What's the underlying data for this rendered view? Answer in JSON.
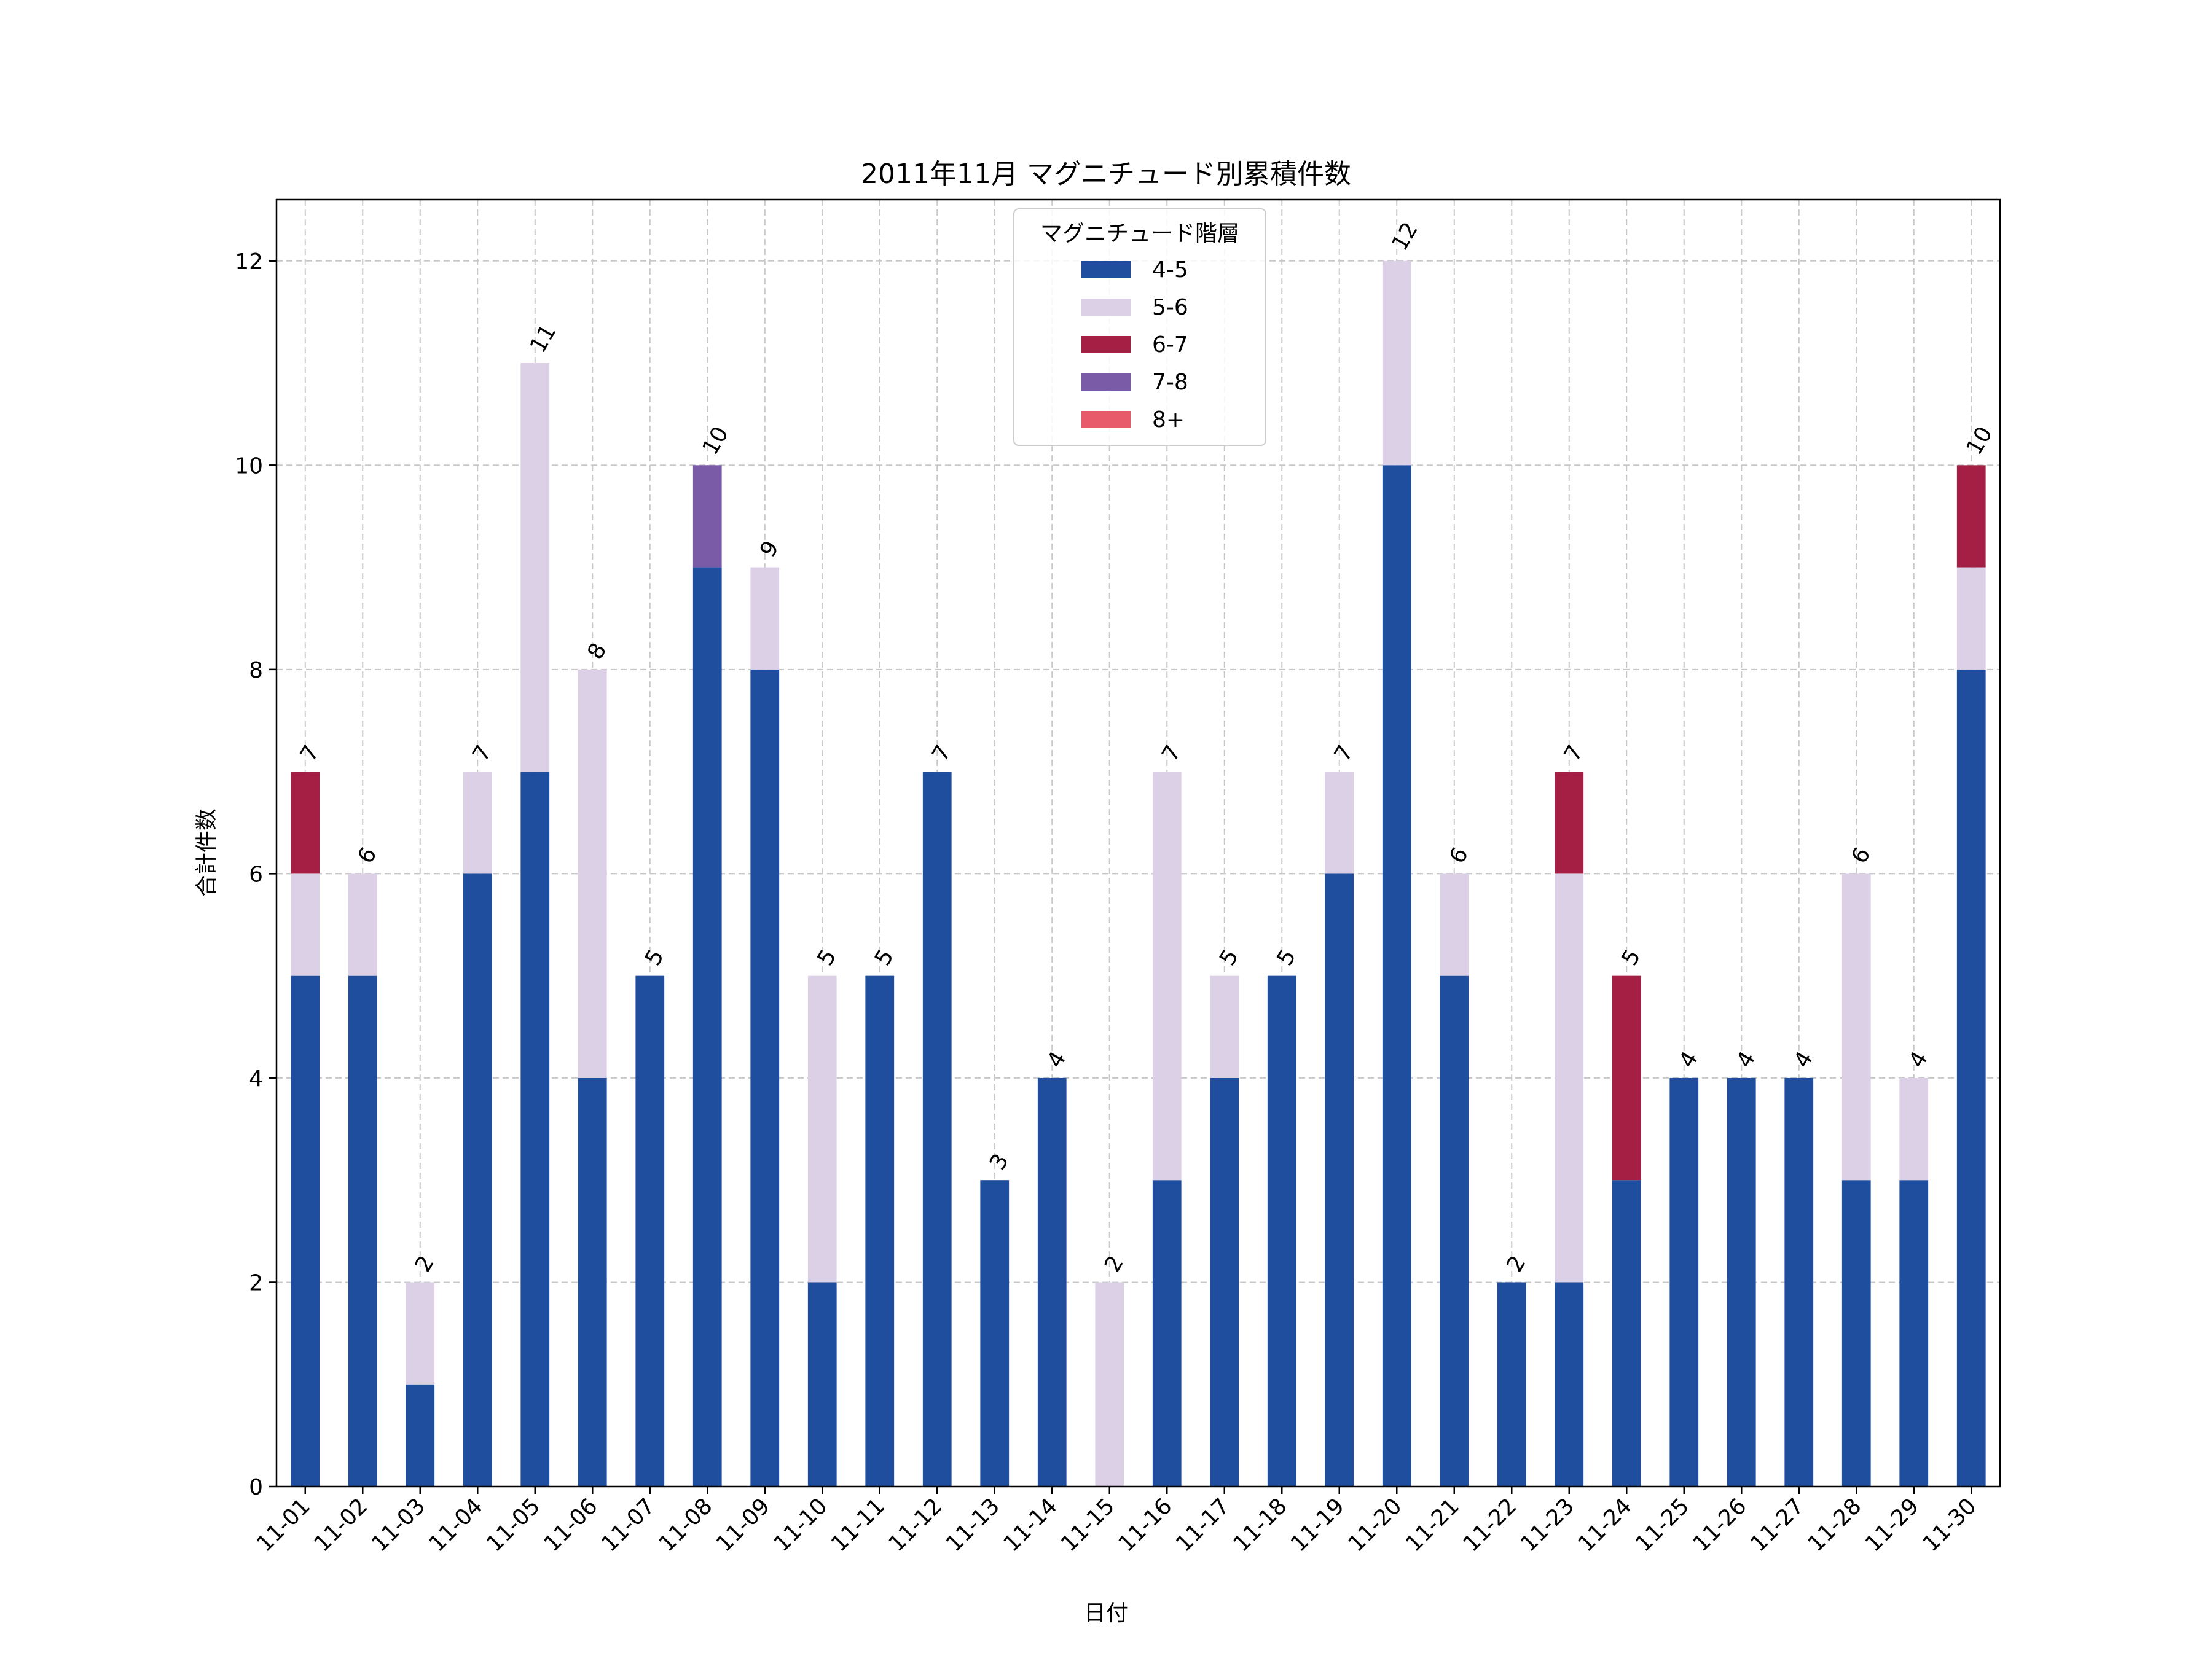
{
  "chart_data": {
    "type": "bar",
    "stacked": true,
    "title": "2011年11月 マグニチュード別累積件数",
    "xlabel": "日付",
    "ylabel": "合計件数",
    "ylim": [
      0,
      12.6
    ],
    "yticks": [
      0,
      2,
      4,
      6,
      8,
      10,
      12
    ],
    "grid": true,
    "legend": {
      "title": "マグニチュード階層",
      "placement": "top-center"
    },
    "categories": [
      "11-01",
      "11-02",
      "11-03",
      "11-04",
      "11-05",
      "11-06",
      "11-07",
      "11-08",
      "11-09",
      "11-10",
      "11-11",
      "11-12",
      "11-13",
      "11-14",
      "11-15",
      "11-16",
      "11-17",
      "11-18",
      "11-19",
      "11-20",
      "11-21",
      "11-22",
      "11-23",
      "11-24",
      "11-25",
      "11-26",
      "11-27",
      "11-28",
      "11-29",
      "11-30"
    ],
    "series": [
      {
        "name": "4-5",
        "color": "#1f4e9f",
        "values": [
          5,
          5,
          1,
          6,
          7,
          4,
          5,
          9,
          8,
          2,
          5,
          7,
          3,
          4,
          0,
          3,
          4,
          5,
          6,
          10,
          5,
          2,
          2,
          3,
          4,
          4,
          4,
          3,
          3,
          8
        ]
      },
      {
        "name": "5-6",
        "color": "#dbd0e6",
        "values": [
          1,
          1,
          1,
          1,
          4,
          4,
          0,
          0,
          1,
          3,
          0,
          0,
          0,
          0,
          2,
          4,
          1,
          0,
          1,
          2,
          1,
          0,
          4,
          0,
          0,
          0,
          0,
          3,
          1,
          1
        ]
      },
      {
        "name": "6-7",
        "color": "#a51f45",
        "values": [
          1,
          0,
          0,
          0,
          0,
          0,
          0,
          0,
          0,
          0,
          0,
          0,
          0,
          0,
          0,
          0,
          0,
          0,
          0,
          0,
          0,
          0,
          1,
          2,
          0,
          0,
          0,
          0,
          0,
          1
        ]
      },
      {
        "name": "7-8",
        "color": "#7a5ba8",
        "values": [
          0,
          0,
          0,
          0,
          0,
          0,
          0,
          1,
          0,
          0,
          0,
          0,
          0,
          0,
          0,
          0,
          0,
          0,
          0,
          0,
          0,
          0,
          0,
          0,
          0,
          0,
          0,
          0,
          0,
          0
        ]
      },
      {
        "name": "8+",
        "color": "#e8596a",
        "values": [
          0,
          0,
          0,
          0,
          0,
          0,
          0,
          0,
          0,
          0,
          0,
          0,
          0,
          0,
          0,
          0,
          0,
          0,
          0,
          0,
          0,
          0,
          0,
          0,
          0,
          0,
          0,
          0,
          0,
          0
        ]
      }
    ],
    "totals": [
      7,
      6,
      2,
      7,
      11,
      8,
      5,
      10,
      9,
      5,
      5,
      7,
      3,
      4,
      2,
      7,
      5,
      5,
      7,
      12,
      6,
      2,
      7,
      5,
      4,
      4,
      4,
      6,
      4,
      10
    ]
  }
}
